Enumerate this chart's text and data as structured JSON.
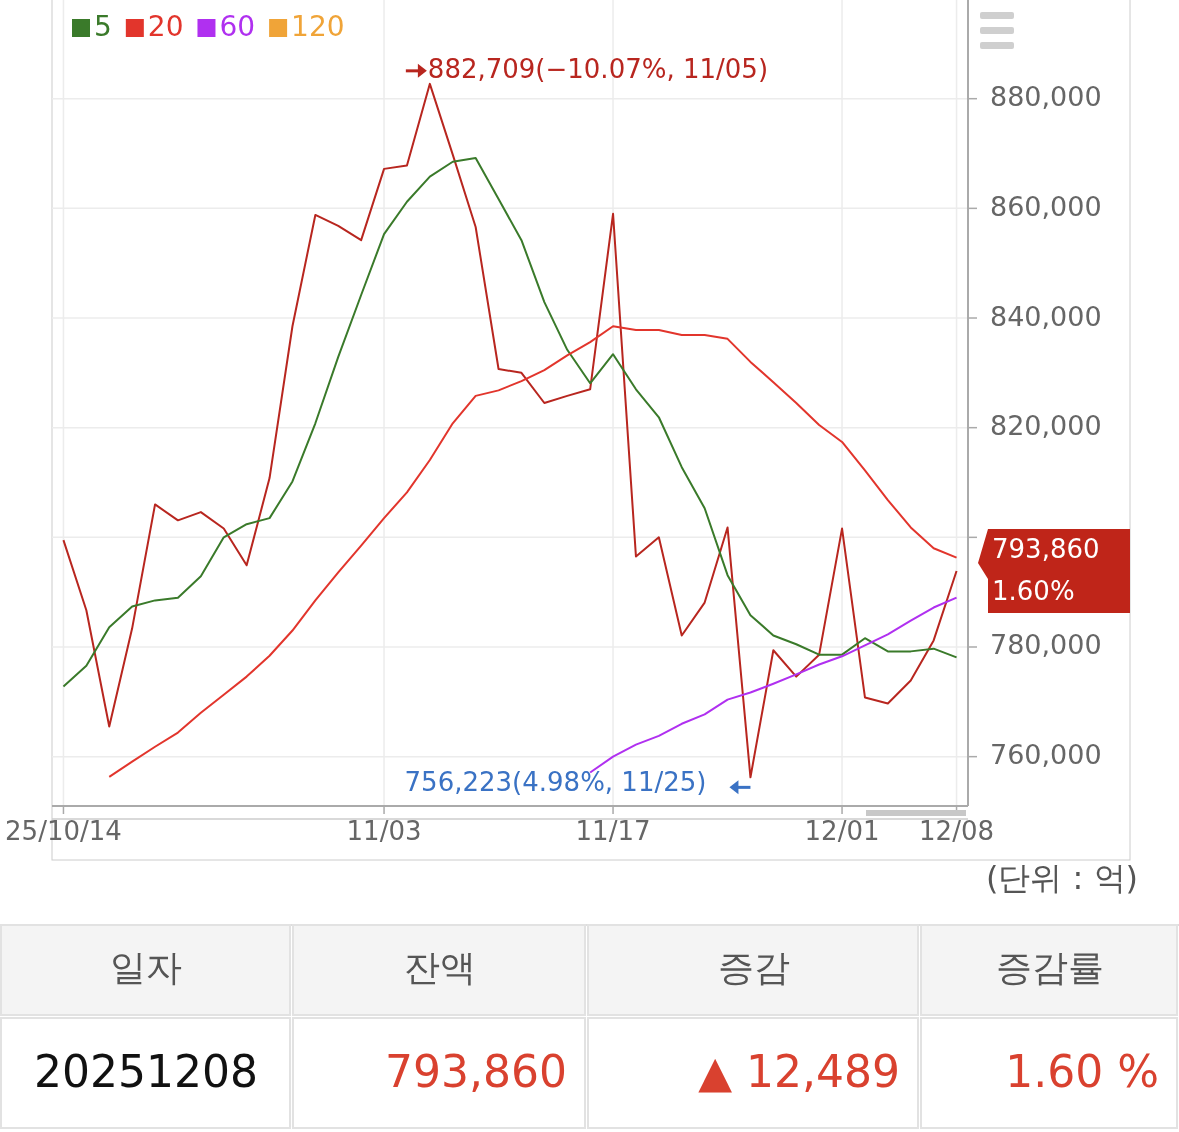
{
  "chart_data": {
    "type": "line",
    "categories": [
      "25/10/14",
      null,
      null,
      null,
      null,
      null,
      null,
      null,
      null,
      null,
      null,
      null,
      null,
      null,
      "11/03",
      null,
      null,
      null,
      null,
      null,
      null,
      null,
      null,
      null,
      "11/17",
      null,
      null,
      null,
      null,
      null,
      null,
      null,
      null,
      null,
      "12/01",
      null,
      null,
      null,
      null,
      "12/08"
    ],
    "series": [
      {
        "color": "#b8261f",
        "values": [
          799500,
          786700,
          765500,
          783400,
          806000,
          803100,
          804600,
          801600,
          794900,
          810800,
          838500,
          858800,
          856800,
          854200,
          867200,
          867800,
          882709,
          869800,
          856600,
          830700,
          830000,
          824500,
          825800,
          827000,
          859000,
          796500,
          800000,
          782100,
          788100,
          801800,
          756223,
          779400,
          774600,
          778600,
          801600,
          770800,
          769700,
          773900,
          781200,
          793860
        ]
      },
      {
        "name": "5",
        "color": "#3a7a2a",
        "values": [
          772800,
          776600,
          783600,
          787400,
          788500,
          789000,
          792900,
          800000,
          802400,
          803500,
          810200,
          820800,
          832900,
          844200,
          855300,
          861200,
          865800,
          868500,
          869200,
          861700,
          854200,
          842900,
          834200,
          828100,
          833400,
          827000,
          821900,
          812800,
          805300,
          793100,
          785800,
          782100,
          780500,
          778600,
          778600,
          781600,
          779200,
          779200,
          779700,
          778100
        ]
      },
      {
        "name": "20",
        "color": "#e2352c",
        "values": [
          null,
          null,
          756300,
          759100,
          761800,
          764400,
          768000,
          771300,
          774600,
          778400,
          783000,
          788500,
          793600,
          798500,
          803500,
          808200,
          814100,
          820800,
          825800,
          826800,
          828500,
          830500,
          833200,
          835600,
          838500,
          837800,
          837800,
          836900,
          836900,
          836200,
          832000,
          828300,
          824500,
          820500,
          817400,
          812200,
          806800,
          801800,
          798000,
          796300
        ]
      },
      {
        "name": "60",
        "color": "#b030f0",
        "values": [
          null,
          null,
          null,
          null,
          null,
          null,
          null,
          null,
          null,
          null,
          null,
          null,
          null,
          null,
          null,
          null,
          null,
          null,
          null,
          null,
          null,
          null,
          null,
          757100,
          760000,
          762200,
          763800,
          766000,
          767700,
          770400,
          771700,
          773300,
          775000,
          776800,
          778300,
          780300,
          782300,
          784800,
          787200,
          789000
        ]
      },
      {
        "name": "120",
        "color": "#f0a438",
        "values": [
          null,
          null,
          null,
          null,
          null,
          null,
          null,
          null,
          null,
          null,
          null,
          null,
          null,
          null,
          null,
          null,
          null,
          null,
          null,
          null,
          null,
          null,
          null,
          null,
          null,
          null,
          null,
          null,
          null,
          null,
          null,
          null,
          null,
          null,
          null,
          null,
          null,
          null,
          null,
          null
        ]
      }
    ],
    "ylim": [
      751000,
      898000
    ],
    "yticks": [
      {
        "value": 760000,
        "label": "760,000"
      },
      {
        "value": 780000,
        "label": "780,000"
      },
      {
        "value": 800000,
        "label": null
      },
      {
        "value": 820000,
        "label": "820,000"
      },
      {
        "value": 840000,
        "label": "840,000"
      },
      {
        "value": 860000,
        "label": "860,000"
      },
      {
        "value": 880000,
        "label": "880,000"
      }
    ],
    "grid": true,
    "legend": "top left",
    "marker": "none",
    "line_style": "solid",
    "annotations": [
      "882,709(−10.07%, 11/05)",
      "756,223(4.98%, 11/25)",
      "793,860\n1.60%",
      "(단위 : 억)",
      "일자",
      "잔액",
      "증감",
      "증감률",
      "20251208",
      "793,860",
      "▲ 12,489",
      "1.60 %"
    ]
  }
}
